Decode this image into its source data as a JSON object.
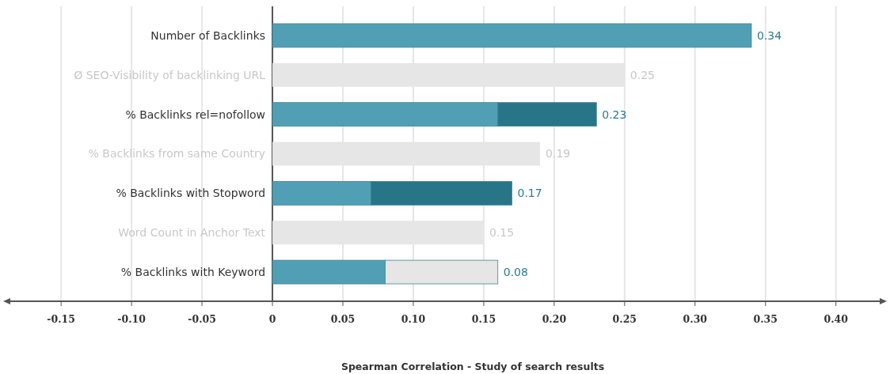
{
  "chart_data": {
    "type": "bar",
    "orientation": "horizontal",
    "stacked": true,
    "xlabel": "Spearman Correlation - Study of search results",
    "categories": [
      "Number of Backlinks",
      "Ø SEO-Visibility of backlinking URL",
      "% Backlinks rel=nofollow",
      "% Backlinks from same Country",
      "% Backlinks with Stopword",
      "Word Count in Anchor Text",
      "% Backlinks with Keyword"
    ],
    "series": [
      {
        "color": "#519fb5",
        "values": [
          0.34,
          0,
          0.16,
          0,
          0.07,
          0,
          0.08
        ]
      },
      {
        "color": "#287588",
        "values": [
          0,
          0,
          0.07,
          0,
          0.1,
          0,
          0
        ]
      },
      {
        "color": "#e6e6e6",
        "values": [
          0,
          0.25,
          0,
          0.19,
          0,
          0.15,
          0.08
        ]
      }
    ],
    "annotations": [
      {
        "text": "0.34",
        "x": 0.34,
        "y": "Number of Backlinks"
      },
      {
        "text": "0.25",
        "x": 0.25,
        "y": "Ø SEO-Visibility of backlinking URL"
      },
      {
        "text": "0.23",
        "x": 0.23,
        "y": "% Backlinks rel=nofollow"
      },
      {
        "text": "0.19",
        "x": 0.19,
        "y": "% Backlinks from same Country"
      },
      {
        "text": "0.17",
        "x": 0.17,
        "y": "% Backlinks with Stopword"
      },
      {
        "text": "0.15",
        "x": 0.15,
        "y": "Word Count in Anchor Text"
      },
      {
        "text": "0.08",
        "x": 0.16,
        "y": "% Backlinks with Keyword"
      }
    ],
    "xlim": [
      -0.19,
      0.435
    ],
    "xticks": [
      {
        "value": -0.15,
        "label": "-0.15"
      },
      {
        "value": -0.1,
        "label": "-0.10"
      },
      {
        "value": -0.05,
        "label": "-0.05"
      },
      0,
      {
        "value": 0.05,
        "label": "0.05"
      },
      {
        "value": 0.1,
        "label": "0.10"
      },
      {
        "value": 0.15,
        "label": "0.15"
      },
      {
        "value": 0.2,
        "label": "0.20"
      },
      {
        "value": 0.25,
        "label": "0.25"
      },
      {
        "value": 0.3,
        "label": "0.30"
      },
      {
        "value": 0.35,
        "label": "0.35"
      },
      {
        "value": 0.4,
        "label": "0.40"
      }
    ],
    "grid": "x"
  }
}
